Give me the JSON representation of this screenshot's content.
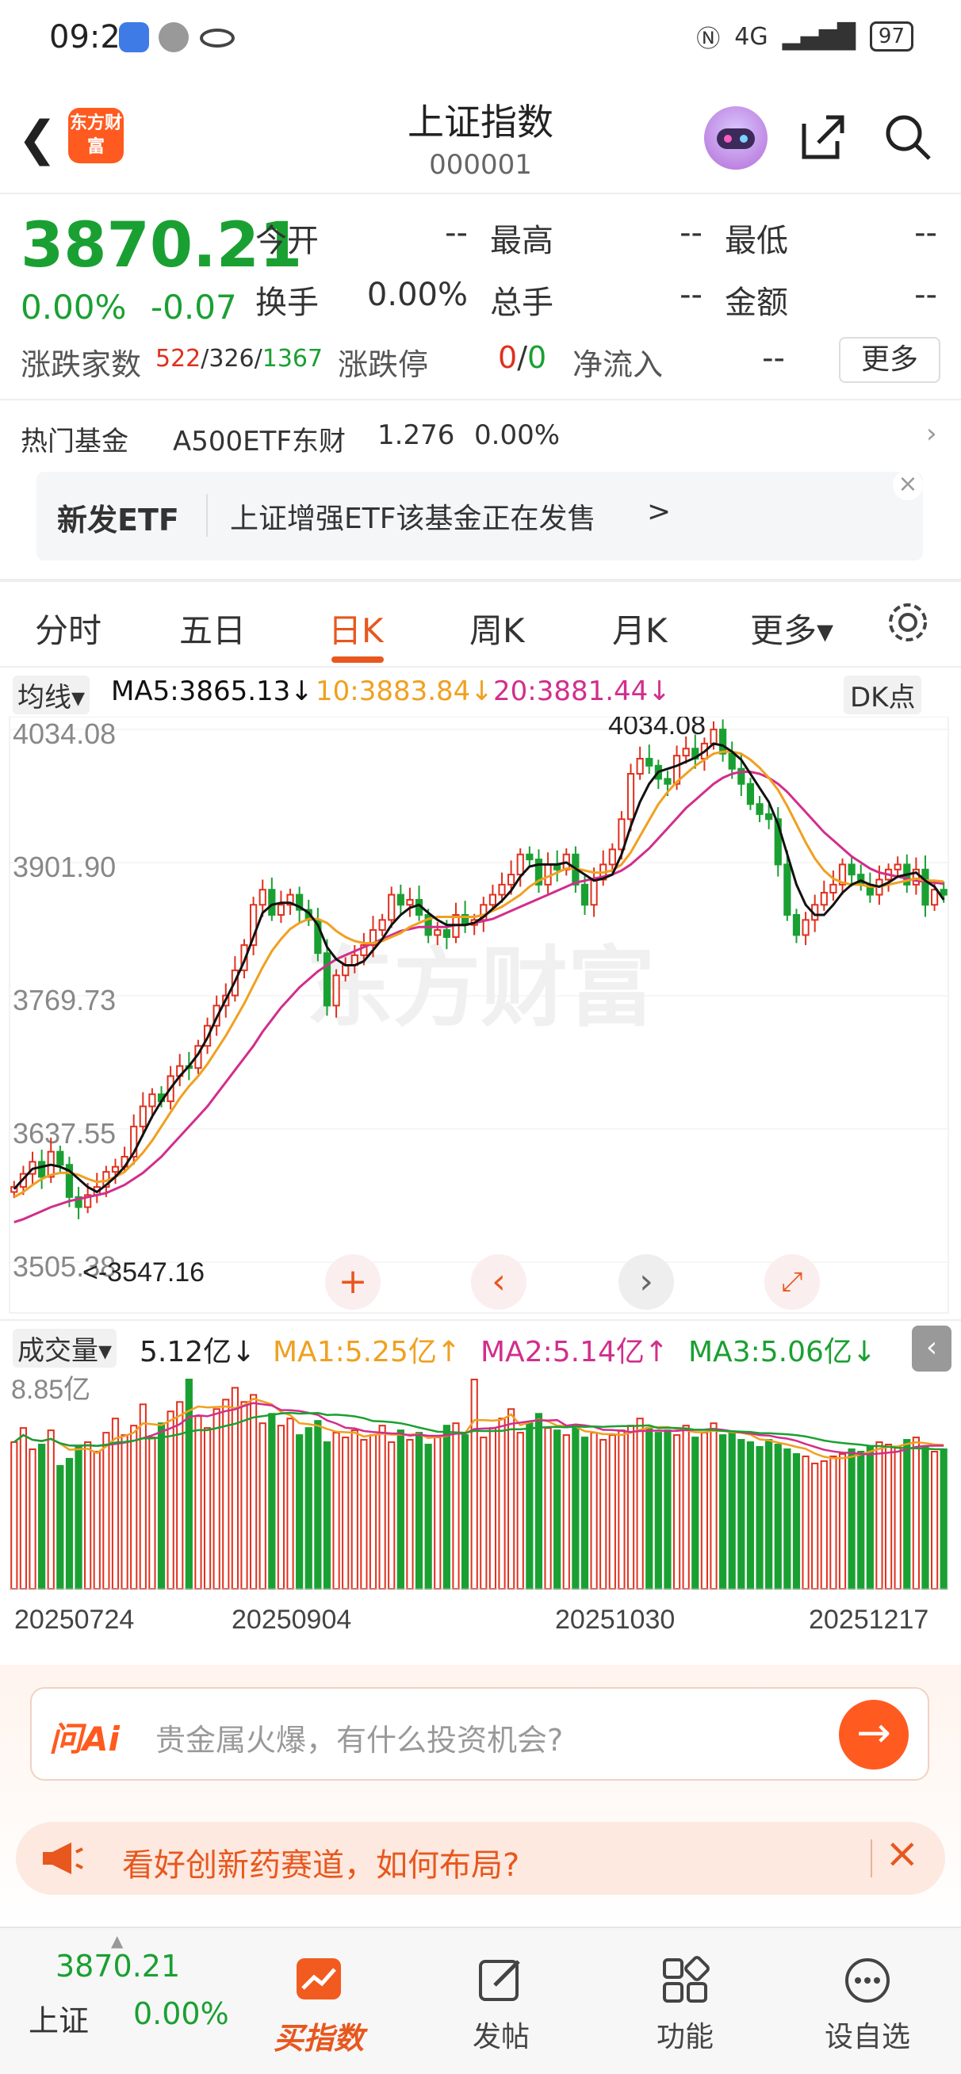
{
  "status_bar": {
    "time": "09:24",
    "network": "4G",
    "battery": "97"
  },
  "header": {
    "title": "上证指数",
    "code": "000001",
    "logo_text": "东方财富"
  },
  "quote": {
    "price": "3870.21",
    "pct": "0.00%",
    "change": "-0.07",
    "open_label": "今开",
    "open_value": "--",
    "high_label": "最高",
    "high_value": "--",
    "low_label": "最低",
    "low_value": "--",
    "turnover_label": "换手",
    "turnover_value": "0.00%",
    "volume_label": "总手",
    "volume_value": "--",
    "amount_label": "金额",
    "amount_value": "--",
    "advdec_label": "涨跌家数",
    "adv": "522",
    "flat": "326",
    "dec": "1367",
    "limit_label": "涨跌停",
    "limit_up": "0",
    "limit_down": "0",
    "inflow_label": "净流入",
    "inflow_value": "--",
    "more_button": "更多"
  },
  "fund": {
    "label": "热门基金",
    "name": "A500ETF东财",
    "price": "1.276",
    "pct": "0.00%"
  },
  "banner": {
    "tag": "新发ETF",
    "text": "上证增强ETF该基金正在发售",
    "arrow": ">"
  },
  "tabs": [
    {
      "label": "分时"
    },
    {
      "label": "五日"
    },
    {
      "label": "日K"
    },
    {
      "label": "周K"
    },
    {
      "label": "月K"
    },
    {
      "label": "更多▾"
    }
  ],
  "ma_row": {
    "selector": "均线▾",
    "ma5": "MA5:3865.13↓",
    "ma10": "10:3883.84↓",
    "ma20": "20:3881.44↓",
    "dk": "DK点"
  },
  "watermark": "东方财富",
  "vol_row": {
    "selector": "成交量▾",
    "vol": "5.12亿↓",
    "ma1": "MA1:5.25亿↑",
    "ma2": "MA2:5.14亿↑",
    "ma3": "MA3:5.06亿↓"
  },
  "chart_data": {
    "type": "candlestick",
    "y_ticks": [
      "4034.08",
      "3901.90",
      "3769.73",
      "3637.55",
      "3505.38"
    ],
    "ylim": [
      3505.38,
      4034.08
    ],
    "high_annotation": "4034.08",
    "low_annotation": "<-3547.16",
    "vol_top_label": "8.85亿",
    "vol_ylim": [
      0,
      8.85
    ],
    "date_ticks": [
      "20250724",
      "20250904",
      "20251030",
      "20251217"
    ],
    "close": [
      3580,
      3593,
      3605,
      3590,
      3615,
      3602,
      3570,
      3560,
      3572,
      3580,
      3595,
      3600,
      3610,
      3640,
      3660,
      3672,
      3665,
      3690,
      3700,
      3698,
      3720,
      3740,
      3760,
      3770,
      3795,
      3820,
      3860,
      3875,
      3850,
      3860,
      3870,
      3855,
      3845,
      3812,
      3760,
      3790,
      3800,
      3810,
      3820,
      3835,
      3845,
      3870,
      3860,
      3865,
      3850,
      3830,
      3835,
      3828,
      3850,
      3840,
      3845,
      3860,
      3870,
      3880,
      3890,
      3910,
      3905,
      3880,
      3900,
      3895,
      3910,
      3880,
      3860,
      3885,
      3900,
      3915,
      3945,
      3990,
      4005,
      3998,
      3985,
      3980,
      4008,
      4015,
      4005,
      4020,
      4034,
      4010,
      3995,
      3980,
      3960,
      3950,
      3945,
      3900,
      3850,
      3830,
      3845,
      3860,
      3872,
      3880,
      3900,
      3890,
      3880,
      3870,
      3885,
      3895,
      3900,
      3880,
      3895,
      3860,
      3875,
      3870
    ],
    "ma5": [
      3578,
      3588,
      3598,
      3600,
      3602,
      3600,
      3596,
      3588,
      3580,
      3575,
      3582,
      3590,
      3600,
      3614,
      3632,
      3650,
      3665,
      3678,
      3690,
      3700,
      3712,
      3728,
      3748,
      3766,
      3784,
      3804,
      3828,
      3852,
      3860,
      3862,
      3862,
      3858,
      3852,
      3840,
      3818,
      3806,
      3800,
      3800,
      3804,
      3815,
      3826,
      3840,
      3850,
      3857,
      3860,
      3852,
      3845,
      3840,
      3840,
      3840,
      3842,
      3848,
      3856,
      3864,
      3874,
      3888,
      3898,
      3900,
      3900,
      3900,
      3902,
      3896,
      3890,
      3884,
      3886,
      3890,
      3910,
      3938,
      3962,
      3980,
      3992,
      3995,
      3998,
      4002,
      4006,
      4012,
      4020,
      4018,
      4012,
      4004,
      3990,
      3976,
      3962,
      3940,
      3910,
      3880,
      3860,
      3850,
      3850,
      3860,
      3872,
      3880,
      3884,
      3880,
      3878,
      3882,
      3888,
      3890,
      3892,
      3884,
      3878,
      3865
    ],
    "ma10": [
      3570,
      3575,
      3582,
      3588,
      3592,
      3594,
      3594,
      3592,
      3588,
      3585,
      3586,
      3590,
      3595,
      3604,
      3614,
      3626,
      3640,
      3654,
      3668,
      3680,
      3690,
      3702,
      3716,
      3730,
      3746,
      3762,
      3780,
      3798,
      3814,
      3826,
      3836,
      3842,
      3846,
      3846,
      3842,
      3834,
      3828,
      3824,
      3822,
      3822,
      3824,
      3828,
      3832,
      3838,
      3842,
      3846,
      3848,
      3848,
      3848,
      3848,
      3848,
      3850,
      3854,
      3858,
      3864,
      3870,
      3878,
      3884,
      3888,
      3892,
      3896,
      3896,
      3894,
      3892,
      3892,
      3894,
      3900,
      3912,
      3928,
      3944,
      3960,
      3972,
      3982,
      3990,
      3998,
      4004,
      4010,
      4012,
      4012,
      4010,
      4004,
      3996,
      3986,
      3974,
      3958,
      3940,
      3922,
      3906,
      3894,
      3886,
      3882,
      3880,
      3880,
      3878,
      3878,
      3880,
      3882,
      3884,
      3886,
      3884,
      3884,
      3883
    ],
    "ma20": [
      3545,
      3548,
      3552,
      3556,
      3560,
      3563,
      3566,
      3568,
      3570,
      3572,
      3574,
      3578,
      3582,
      3588,
      3594,
      3602,
      3610,
      3620,
      3630,
      3640,
      3650,
      3660,
      3672,
      3684,
      3696,
      3708,
      3720,
      3734,
      3746,
      3758,
      3768,
      3778,
      3786,
      3794,
      3800,
      3806,
      3810,
      3814,
      3818,
      3822,
      3826,
      3830,
      3834,
      3836,
      3838,
      3838,
      3838,
      3838,
      3840,
      3840,
      3842,
      3844,
      3846,
      3850,
      3854,
      3858,
      3862,
      3866,
      3870,
      3874,
      3878,
      3882,
      3884,
      3886,
      3888,
      3890,
      3894,
      3900,
      3908,
      3916,
      3926,
      3936,
      3946,
      3956,
      3964,
      3972,
      3980,
      3986,
      3990,
      3992,
      3992,
      3990,
      3986,
      3980,
      3972,
      3962,
      3952,
      3942,
      3932,
      3924,
      3916,
      3908,
      3902,
      3896,
      3892,
      3890,
      3888,
      3886,
      3884,
      3883,
      3882,
      3881
    ],
    "volume": [
      6.2,
      6.8,
      5.9,
      6.1,
      6.7,
      5.2,
      5.5,
      6.0,
      6.2,
      5.8,
      6.6,
      7.2,
      6.5,
      6.9,
      7.8,
      6.4,
      7.0,
      7.5,
      7.9,
      8.85,
      7.3,
      6.8,
      7.6,
      8.0,
      8.5,
      7.9,
      8.2,
      7.0,
      7.4,
      6.9,
      7.2,
      6.5,
      6.8,
      7.1,
      6.2,
      6.6,
      6.4,
      6.7,
      6.3,
      6.5,
      6.9,
      6.2,
      6.7,
      6.3,
      6.6,
      6.1,
      6.4,
      6.9,
      7.0,
      6.5,
      8.85,
      6.4,
      6.8,
      7.2,
      7.6,
      6.6,
      7.0,
      7.4,
      6.8,
      6.7,
      6.5,
      6.9,
      6.4,
      6.6,
      6.3,
      6.5,
      6.7,
      6.9,
      7.2,
      6.8,
      6.6,
      6.7,
      6.5,
      6.9,
      6.4,
      6.6,
      7.0,
      6.5,
      6.6,
      6.3,
      6.2,
      6.0,
      6.3,
      6.1,
      5.9,
      5.7,
      5.6,
      5.3,
      5.4,
      5.6,
      5.7,
      5.9,
      5.8,
      6.0,
      6.2,
      6.1,
      6.0,
      6.3,
      6.4,
      6.0,
      5.8,
      5.9
    ]
  },
  "ask_ai": {
    "brand": "问Ai",
    "placeholder": "贵金属火爆，有什么投资机会?"
  },
  "promo": {
    "text": "看好创新药赛道，如何布局?"
  },
  "bottom": {
    "price": "3870.21",
    "name": "上证",
    "pct": "0.00%",
    "buy": "买指数",
    "post": "发帖",
    "func": "功能",
    "watch": "设自选"
  },
  "colors": {
    "up": "#e0301e",
    "down": "#1aa032",
    "accent": "#e8571e",
    "ma5": "#111111",
    "ma10": "#f0a020",
    "ma20": "#d22e8c"
  }
}
